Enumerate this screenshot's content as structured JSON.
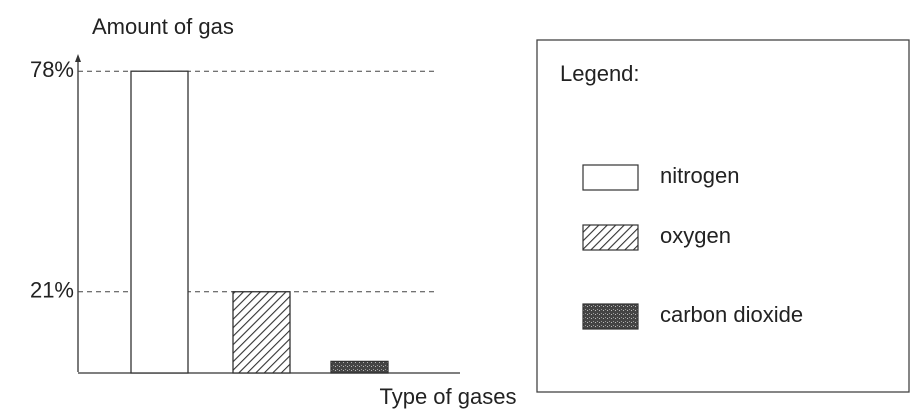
{
  "chart_data": {
    "type": "bar",
    "ylabel": "Amount of gas",
    "xlabel": "Type of gases",
    "legend_title": "Legend:",
    "categories": [
      "nitrogen",
      "oxygen",
      "carbon dioxide"
    ],
    "values": [
      78,
      21,
      3
    ],
    "fills": [
      "none",
      "hatch",
      "speckle"
    ],
    "ylim": [
      0,
      81
    ],
    "yticks": [
      {
        "value": 78,
        "label": "78%"
      },
      {
        "value": 21,
        "label": "21%"
      }
    ],
    "grid": true
  }
}
